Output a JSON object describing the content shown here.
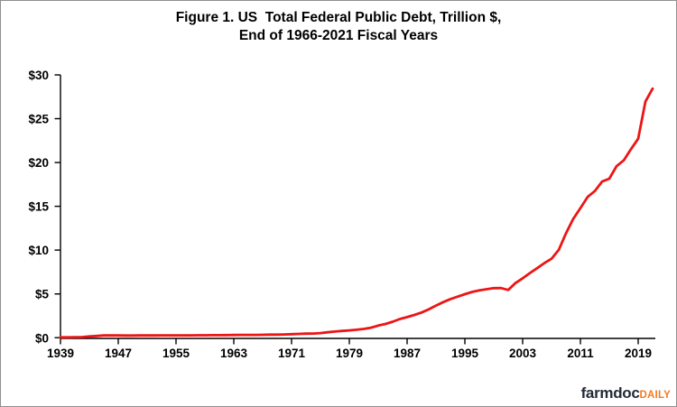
{
  "title": {
    "line1": "Figure 1. US  Total Federal Public Debt, Trillion $,",
    "line2": "End of 1966-2021 Fiscal Years"
  },
  "footer": {
    "brand": "farmdoc",
    "brand_suffix": "DAILY",
    "brand_color": "#232b38",
    "brand_suffix_color": "#f47b20"
  },
  "chart_data": {
    "type": "line",
    "title": "Figure 1. US Total Federal Public Debt, Trillion $, End of 1966-2021 Fiscal Years",
    "xlabel": "",
    "ylabel": "",
    "xlim": [
      1939,
      2021
    ],
    "ylim": [
      0,
      30
    ],
    "grid": false,
    "legend": false,
    "line_color": "#ec1515",
    "x_ticks": [
      "1939",
      "1947",
      "1955",
      "1963",
      "1971",
      "1979",
      "1987",
      "1995",
      "2003",
      "2011",
      "2019"
    ],
    "y_ticks": [
      "$0",
      "$5",
      "$10",
      "$15",
      "$20",
      "$25",
      "$30"
    ],
    "series": [
      {
        "name": "US Total Federal Public Debt, Trillion $",
        "x": [
          1939,
          1940,
          1941,
          1942,
          1943,
          1944,
          1945,
          1946,
          1947,
          1948,
          1949,
          1950,
          1951,
          1952,
          1953,
          1954,
          1955,
          1956,
          1957,
          1958,
          1959,
          1960,
          1961,
          1962,
          1963,
          1964,
          1965,
          1966,
          1967,
          1968,
          1969,
          1970,
          1971,
          1972,
          1973,
          1974,
          1975,
          1976,
          1977,
          1978,
          1979,
          1980,
          1981,
          1982,
          1983,
          1984,
          1985,
          1986,
          1987,
          1988,
          1989,
          1990,
          1991,
          1992,
          1993,
          1994,
          1995,
          1996,
          1997,
          1998,
          1999,
          2000,
          2001,
          2002,
          2003,
          2004,
          2005,
          2006,
          2007,
          2008,
          2009,
          2010,
          2011,
          2012,
          2013,
          2014,
          2015,
          2016,
          2017,
          2018,
          2019,
          2020,
          2021
        ],
        "values": [
          0.04,
          0.04,
          0.06,
          0.07,
          0.14,
          0.2,
          0.26,
          0.27,
          0.26,
          0.25,
          0.25,
          0.26,
          0.26,
          0.26,
          0.27,
          0.27,
          0.27,
          0.27,
          0.27,
          0.28,
          0.28,
          0.29,
          0.29,
          0.3,
          0.31,
          0.32,
          0.32,
          0.32,
          0.33,
          0.35,
          0.35,
          0.37,
          0.4,
          0.43,
          0.46,
          0.47,
          0.53,
          0.62,
          0.7,
          0.77,
          0.83,
          0.91,
          1.0,
          1.14,
          1.38,
          1.57,
          1.82,
          2.13,
          2.35,
          2.6,
          2.87,
          3.23,
          3.67,
          4.06,
          4.41,
          4.69,
          4.97,
          5.22,
          5.41,
          5.53,
          5.66,
          5.67,
          5.45,
          6.23,
          6.78,
          7.38,
          7.93,
          8.51,
          9.01,
          10.02,
          11.91,
          13.56,
          14.79,
          16.07,
          16.74,
          17.82,
          18.15,
          19.57,
          20.24,
          21.52,
          22.72,
          26.95,
          28.43
        ]
      }
    ]
  }
}
